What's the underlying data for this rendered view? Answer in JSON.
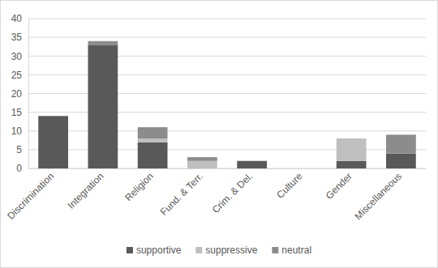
{
  "chart_data": {
    "type": "bar",
    "stacked": true,
    "categories": [
      "Discrimination",
      "Integration",
      "Religion",
      "Fund. & Terr.",
      "Crim. & Del.",
      "Culture",
      "Gender",
      "Miscellaneous"
    ],
    "series": [
      {
        "name": "supportive",
        "color": "#595959",
        "values": [
          14,
          33,
          7,
          0,
          2,
          0,
          2,
          4
        ]
      },
      {
        "name": "suppressive",
        "color": "#bfbfbf",
        "values": [
          0,
          0,
          1,
          2,
          0,
          0,
          6,
          0
        ]
      },
      {
        "name": "neutral",
        "color": "#8c8c8c",
        "values": [
          0,
          1,
          3,
          1,
          0,
          0,
          0,
          5
        ]
      }
    ],
    "ylim": [
      0,
      40
    ],
    "yticks": [
      0,
      5,
      10,
      15,
      20,
      25,
      30,
      35,
      40
    ],
    "grid": true,
    "legend": "bottom"
  }
}
